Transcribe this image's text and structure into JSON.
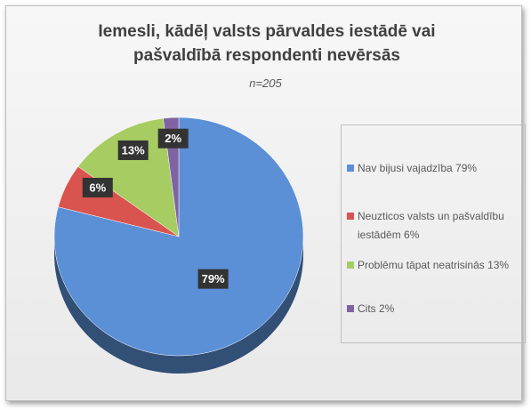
{
  "chart_data": {
    "type": "pie",
    "title": "Iemesli, kādēļ valsts pārvaldes iestādē vai pašvaldībā respondenti nevērsās",
    "subtitle": "n=205",
    "categories": [
      "Nav bijusi vajadzība 79%",
      "Neuzticos valsts un pašvaldību iestādēm 6%",
      "Problēmu tāpat neatrisinās 13%",
      "Cits  2%"
    ],
    "values": [
      79,
      6,
      13,
      2
    ],
    "value_labels": [
      "79%",
      "6%",
      "13%",
      "2%"
    ],
    "colors": [
      "#5b8fd6",
      "#d9534f",
      "#a6cc62",
      "#8064a2"
    ],
    "legend": "right"
  }
}
